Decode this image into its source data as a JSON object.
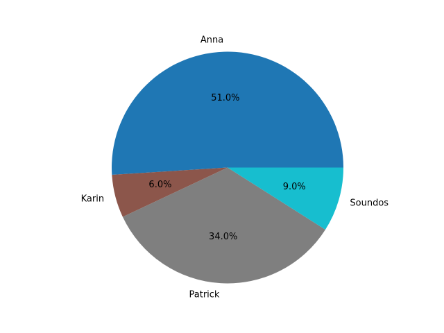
{
  "chart_data": {
    "type": "pie",
    "labels": [
      "Anna",
      "Karin",
      "Patrick",
      "Soundos"
    ],
    "values": [
      51.0,
      6.0,
      34.0,
      9.0
    ],
    "percent_labels": [
      "51.0%",
      "6.0%",
      "34.0%",
      "9.0%"
    ],
    "colors": [
      "#1f77b4",
      "#8c564b",
      "#7f7f7f",
      "#17becf"
    ],
    "start_angle_deg": 0,
    "direction": "counterclockwise",
    "legend": "none"
  }
}
